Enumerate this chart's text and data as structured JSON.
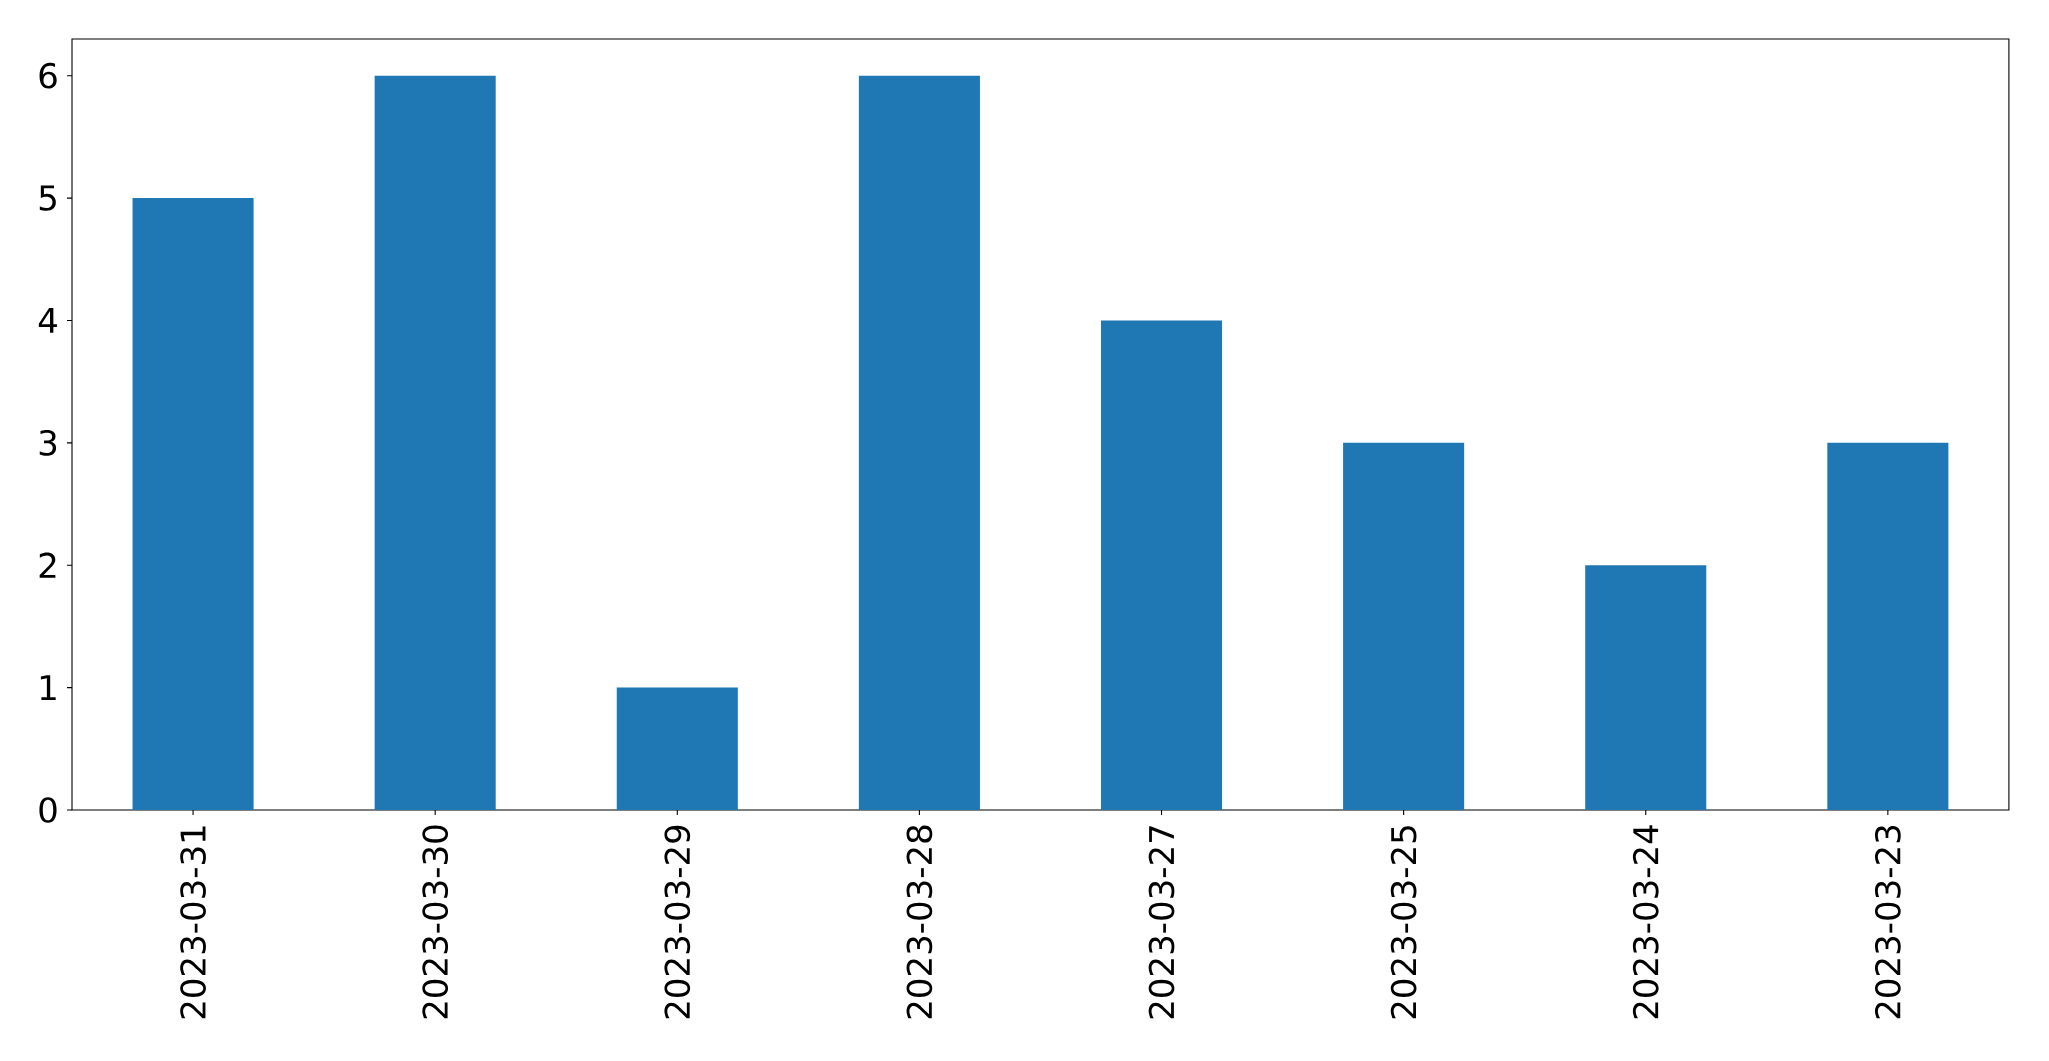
{
  "chart_data": {
    "type": "bar",
    "categories": [
      "2023-03-31",
      "2023-03-30",
      "2023-03-29",
      "2023-03-28",
      "2023-03-27",
      "2023-03-25",
      "2023-03-24",
      "2023-03-23"
    ],
    "values": [
      5,
      6,
      1,
      6,
      4,
      3,
      2,
      3
    ],
    "color": "#1f77b4",
    "ylim": [
      0,
      6.3
    ],
    "yticks": [
      0,
      1,
      2,
      3,
      4,
      5,
      6
    ]
  }
}
